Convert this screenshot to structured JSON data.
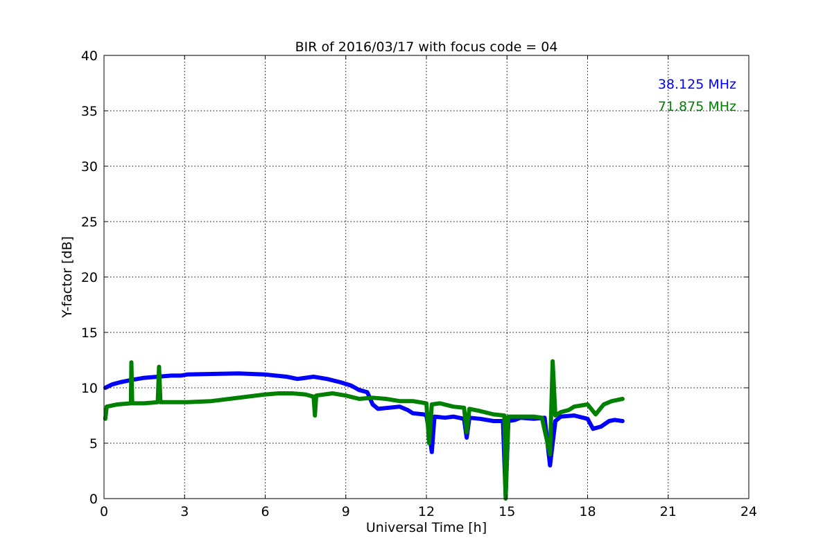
{
  "chart_data": {
    "type": "line",
    "title": "BIR of 2016/03/17 with focus code = 04",
    "xlabel": "Universal Time [h]",
    "ylabel": "Y-factor [dB]",
    "xlim": [
      0,
      24
    ],
    "ylim": [
      0,
      40
    ],
    "xticks": [
      "0",
      "3",
      "6",
      "9",
      "12",
      "15",
      "18",
      "21",
      "24"
    ],
    "yticks": [
      "0",
      "5",
      "10",
      "15",
      "20",
      "25",
      "30",
      "35",
      "40"
    ],
    "grid": true,
    "legend_placement": "top-right",
    "series": [
      {
        "name": "38.125 MHz",
        "color": "#0000ff",
        "points": [
          [
            0.05,
            10.0
          ],
          [
            0.3,
            10.3
          ],
          [
            0.6,
            10.5
          ],
          [
            1.0,
            10.7
          ],
          [
            1.5,
            10.9
          ],
          [
            2.0,
            11.0
          ],
          [
            2.5,
            11.1
          ],
          [
            2.85,
            11.1
          ],
          [
            3.1,
            11.2
          ],
          [
            4.0,
            11.25
          ],
          [
            5.0,
            11.3
          ],
          [
            6.0,
            11.2
          ],
          [
            6.8,
            11.0
          ],
          [
            7.2,
            10.8
          ],
          [
            7.5,
            10.9
          ],
          [
            7.8,
            11.0
          ],
          [
            8.3,
            10.8
          ],
          [
            8.8,
            10.5
          ],
          [
            9.2,
            10.2
          ],
          [
            9.5,
            9.8
          ],
          [
            9.8,
            9.6
          ],
          [
            10.0,
            8.5
          ],
          [
            10.2,
            8.1
          ],
          [
            10.6,
            8.2
          ],
          [
            11.0,
            8.3
          ],
          [
            11.3,
            8.0
          ],
          [
            11.5,
            7.7
          ],
          [
            11.9,
            7.6
          ],
          [
            12.0,
            7.5
          ],
          [
            12.1,
            6.0
          ],
          [
            12.2,
            4.2
          ],
          [
            12.3,
            7.4
          ],
          [
            12.7,
            7.3
          ],
          [
            13.0,
            7.4
          ],
          [
            13.4,
            7.2
          ],
          [
            13.5,
            5.5
          ],
          [
            13.6,
            7.3
          ],
          [
            14.0,
            7.2
          ],
          [
            14.5,
            7.0
          ],
          [
            14.85,
            7.0
          ],
          [
            14.95,
            0.3
          ],
          [
            15.05,
            7.0
          ],
          [
            15.3,
            7.1
          ],
          [
            15.5,
            7.3
          ],
          [
            16.0,
            7.2
          ],
          [
            16.4,
            7.3
          ],
          [
            16.6,
            3.0
          ],
          [
            16.8,
            7.0
          ],
          [
            17.0,
            7.4
          ],
          [
            17.5,
            7.5
          ],
          [
            18.0,
            7.2
          ],
          [
            18.2,
            6.3
          ],
          [
            18.5,
            6.5
          ],
          [
            18.8,
            7.0
          ],
          [
            19.0,
            7.1
          ],
          [
            19.3,
            7.0
          ]
        ]
      },
      {
        "name": "71.875 MHz",
        "color": "#008000",
        "points": [
          [
            0.05,
            7.2
          ],
          [
            0.1,
            8.3
          ],
          [
            0.5,
            8.5
          ],
          [
            1.0,
            8.6
          ],
          [
            1.02,
            12.3
          ],
          [
            1.05,
            8.6
          ],
          [
            1.5,
            8.6
          ],
          [
            2.0,
            8.7
          ],
          [
            2.05,
            11.9
          ],
          [
            2.1,
            8.7
          ],
          [
            2.5,
            8.7
          ],
          [
            2.85,
            8.7
          ],
          [
            3.1,
            8.7
          ],
          [
            4.0,
            8.8
          ],
          [
            5.0,
            9.1
          ],
          [
            6.0,
            9.4
          ],
          [
            6.5,
            9.5
          ],
          [
            7.0,
            9.5
          ],
          [
            7.5,
            9.4
          ],
          [
            7.8,
            9.2
          ],
          [
            7.85,
            7.5
          ],
          [
            7.9,
            9.3
          ],
          [
            8.5,
            9.5
          ],
          [
            9.0,
            9.3
          ],
          [
            9.5,
            9.0
          ],
          [
            10.0,
            9.1
          ],
          [
            10.5,
            9.0
          ],
          [
            11.0,
            8.8
          ],
          [
            11.5,
            8.8
          ],
          [
            12.0,
            8.6
          ],
          [
            12.1,
            5.0
          ],
          [
            12.2,
            8.5
          ],
          [
            12.5,
            8.6
          ],
          [
            13.0,
            8.3
          ],
          [
            13.4,
            8.2
          ],
          [
            13.5,
            6.0
          ],
          [
            13.6,
            8.1
          ],
          [
            14.0,
            7.9
          ],
          [
            14.5,
            7.6
          ],
          [
            14.9,
            7.5
          ],
          [
            14.95,
            0.0
          ],
          [
            15.05,
            7.4
          ],
          [
            15.5,
            7.4
          ],
          [
            16.0,
            7.4
          ],
          [
            16.3,
            7.3
          ],
          [
            16.6,
            4.0
          ],
          [
            16.7,
            12.4
          ],
          [
            16.8,
            7.5
          ],
          [
            17.0,
            7.8
          ],
          [
            17.3,
            8.0
          ],
          [
            17.5,
            8.3
          ],
          [
            18.0,
            8.5
          ],
          [
            18.3,
            7.6
          ],
          [
            18.6,
            8.5
          ],
          [
            18.9,
            8.8
          ],
          [
            19.3,
            9.0
          ]
        ]
      }
    ]
  }
}
